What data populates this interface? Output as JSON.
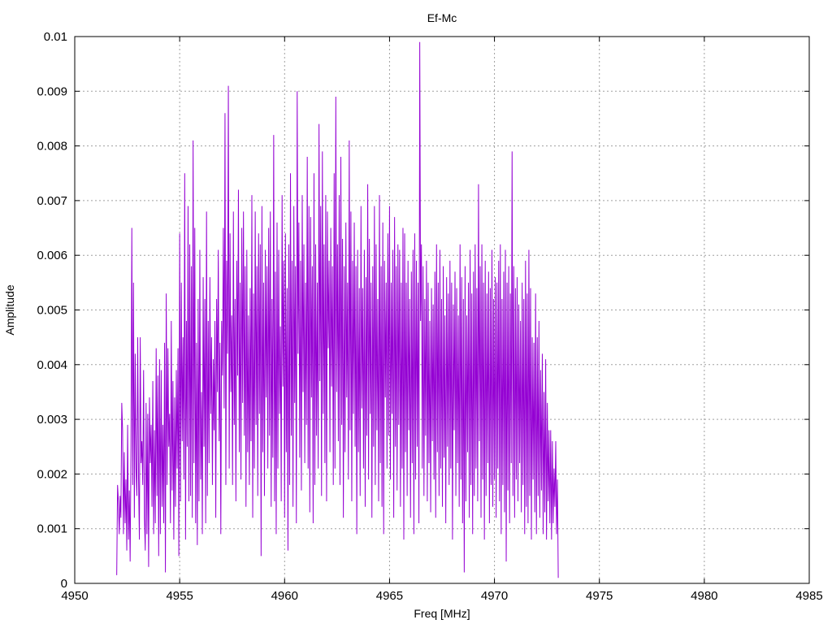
{
  "chart_data": {
    "type": "line",
    "title": "Ef-Mc",
    "xlabel": "Freq [MHz]",
    "ylabel": "Amplitude",
    "xlim": [
      4950,
      4985
    ],
    "ylim": [
      0,
      0.01
    ],
    "x_ticks": [
      "4950",
      "4955",
      "4960",
      "4965",
      "4970",
      "4975",
      "4980",
      "4985"
    ],
    "y_ticks": [
      "0",
      "0.001",
      "0.002",
      "0.003",
      "0.004",
      "0.005",
      "0.006",
      "0.007",
      "0.008",
      "0.009",
      "0.01"
    ],
    "grid": true,
    "legend": "none",
    "series": [
      {
        "color": "#9400d3",
        "x_start": 4952.0,
        "x_step": 0.04,
        "values": [
          0.00015,
          0.0018,
          0.0015,
          0.0009,
          0.0016,
          0.0012,
          0.0033,
          0.0028,
          0.0009,
          0.0024,
          0.0011,
          0.0019,
          0.0006,
          0.0029,
          0.0008,
          0.0017,
          0.0004,
          0.0025,
          0.0065,
          0.0018,
          0.0055,
          0.0012,
          0.0042,
          0.0021,
          0.0016,
          0.0045,
          0.0019,
          0.0008,
          0.0045,
          0.0022,
          0.0026,
          0.0018,
          0.0039,
          0.0012,
          0.0006,
          0.0033,
          0.0009,
          0.0031,
          0.0003,
          0.0034,
          0.0022,
          0.0029,
          0.0014,
          0.0037,
          0.0009,
          0.0028,
          0.0011,
          0.0043,
          0.0016,
          0.0038,
          0.0005,
          0.0041,
          0.0009,
          0.0039,
          0.0014,
          0.0029,
          0.0011,
          0.0044,
          0.0002,
          0.0053,
          0.0018,
          0.0043,
          0.0025,
          0.0031,
          0.0011,
          0.0048,
          0.0017,
          0.0037,
          0.0008,
          0.0034,
          0.0014,
          0.0039,
          0.0021,
          0.0043,
          0.0005,
          0.0064,
          0.0015,
          0.0055,
          0.0026,
          0.0045,
          0.0019,
          0.0075,
          0.0008,
          0.0048,
          0.0025,
          0.0069,
          0.0015,
          0.0062,
          0.0016,
          0.0058,
          0.0012,
          0.0081,
          0.0022,
          0.0065,
          0.0011,
          0.0044,
          0.0007,
          0.0052,
          0.0015,
          0.0061,
          0.0019,
          0.0035,
          0.0009,
          0.0056,
          0.0025,
          0.0052,
          0.0011,
          0.0068,
          0.0016,
          0.0048,
          0.0022,
          0.0056,
          0.0031,
          0.0045,
          0.0018,
          0.0041,
          0.0028,
          0.0048,
          0.0012,
          0.0052,
          0.0035,
          0.0061,
          0.0026,
          0.0044,
          0.0009,
          0.0048,
          0.0038,
          0.0065,
          0.0032,
          0.0086,
          0.0018,
          0.0059,
          0.0042,
          0.0091,
          0.0021,
          0.0064,
          0.0035,
          0.0049,
          0.0018,
          0.0068,
          0.0029,
          0.0052,
          0.0015,
          0.0059,
          0.0038,
          0.0072,
          0.0024,
          0.0055,
          0.0019,
          0.0065,
          0.0033,
          0.0068,
          0.0027,
          0.0058,
          0.0014,
          0.0061,
          0.0024,
          0.0049,
          0.0018,
          0.0054,
          0.0026,
          0.0071,
          0.0012,
          0.0053,
          0.0021,
          0.0068,
          0.0029,
          0.0058,
          0.0016,
          0.0064,
          0.0031,
          0.0062,
          0.0005,
          0.0069,
          0.0024,
          0.0055,
          0.0016,
          0.0061,
          0.0034,
          0.0058,
          0.0021,
          0.0065,
          0.0027,
          0.0068,
          0.0014,
          0.0052,
          0.0023,
          0.0082,
          0.0015,
          0.0057,
          0.0009,
          0.0066,
          0.0021,
          0.0061,
          0.0031,
          0.0047,
          0.0015,
          0.0071,
          0.0036,
          0.0059,
          0.0012,
          0.0064,
          0.0024,
          0.0054,
          0.0006,
          0.0062,
          0.0018,
          0.0075,
          0.0027,
          0.0059,
          0.0014,
          0.0069,
          0.0033,
          0.0058,
          0.0011,
          0.009,
          0.0042,
          0.0066,
          0.0023,
          0.0059,
          0.0017,
          0.0071,
          0.0035,
          0.0062,
          0.0022,
          0.0055,
          0.0029,
          0.0078,
          0.0021,
          0.0069,
          0.0013,
          0.0067,
          0.0034,
          0.0058,
          0.0011,
          0.0075,
          0.0018,
          0.0062,
          0.0027,
          0.0055,
          0.0021,
          0.0084,
          0.0037,
          0.0069,
          0.0016,
          0.0079,
          0.0031,
          0.0062,
          0.0022,
          0.0071,
          0.0015,
          0.0068,
          0.0043,
          0.0059,
          0.0024,
          0.0065,
          0.0036,
          0.0058,
          0.0018,
          0.0075,
          0.0021,
          0.0089,
          0.0035,
          0.0062,
          0.0026,
          0.0071,
          0.0018,
          0.0078,
          0.0029,
          0.0063,
          0.0012,
          0.0058,
          0.0024,
          0.0066,
          0.0034,
          0.0055,
          0.0019,
          0.0081,
          0.0028,
          0.0068,
          0.0015,
          0.0059,
          0.0031,
          0.0066,
          0.0025,
          0.0058,
          0.0009,
          0.0061,
          0.0024,
          0.0054,
          0.0016,
          0.0069,
          0.0032,
          0.0054,
          0.0021,
          0.0061,
          0.0014,
          0.0056,
          0.0027,
          0.0073,
          0.0019,
          0.0063,
          0.0031,
          0.0055,
          0.0012,
          0.0058,
          0.0025,
          0.0069,
          0.0018,
          0.0062,
          0.0028,
          0.0052,
          0.0015,
          0.0071,
          0.0022,
          0.0058,
          0.0014,
          0.0066,
          0.0009,
          0.0059,
          0.0034,
          0.0055,
          0.0021,
          0.0064,
          0.0027,
          0.0069,
          0.0019,
          0.0055,
          0.0031,
          0.0061,
          0.0012,
          0.0067,
          0.0025,
          0.0058,
          0.0017,
          0.0062,
          0.0029,
          0.0061,
          0.0014,
          0.0055,
          0.0021,
          0.0065,
          0.0008,
          0.0064,
          0.0024,
          0.0055,
          0.0016,
          0.0059,
          0.0028,
          0.0052,
          0.0012,
          0.0057,
          0.0022,
          0.0061,
          0.0009,
          0.0064,
          0.0019,
          0.0059,
          0.0025,
          0.0055,
          0.0011,
          0.0099,
          0.0048,
          0.0062,
          0.0021,
          0.0058,
          0.0016,
          0.0052,
          0.0027,
          0.0059,
          0.0015,
          0.0055,
          0.0022,
          0.0048,
          0.0013,
          0.0054,
          0.0026,
          0.0051,
          0.0019,
          0.0057,
          0.0012,
          0.0062,
          0.0024,
          0.0055,
          0.0016,
          0.0061,
          0.0021,
          0.0052,
          0.0014,
          0.0058,
          0.0023,
          0.0049,
          0.0011,
          0.0056,
          0.0025,
          0.0053,
          0.0018,
          0.0059,
          0.0021,
          0.0055,
          0.0008,
          0.0051,
          0.0028,
          0.0057,
          0.0016,
          0.0054,
          0.0022,
          0.0049,
          0.0014,
          0.0062,
          0.0019,
          0.0056,
          0.0011,
          0.0052,
          0.0002,
          0.0058,
          0.0015,
          0.0049,
          0.0024,
          0.0055,
          0.0012,
          0.0061,
          0.0018,
          0.0053,
          0.0009,
          0.0057,
          0.0016,
          0.0062,
          0.0021,
          0.0054,
          0.0015,
          0.0073,
          0.0026,
          0.0058,
          0.0012,
          0.0062,
          0.0019,
          0.0055,
          0.0008,
          0.0059,
          0.0016,
          0.0053,
          0.0022,
          0.0057,
          0.0011,
          0.0054,
          0.0018,
          0.0061,
          0.0014,
          0.0052,
          0.0019,
          0.0056,
          0.0012,
          0.0055,
          0.0021,
          0.0059,
          0.0015,
          0.0062,
          0.0009,
          0.0052,
          0.0018,
          0.0057,
          0.0013,
          0.0061,
          0.0004,
          0.0055,
          0.0017,
          0.0058,
          0.0011,
          0.0053,
          0.0022,
          0.0079,
          0.0016,
          0.0058,
          0.0012,
          0.0054,
          0.0019,
          0.0056,
          0.0015,
          0.0051,
          0.0022,
          0.0048,
          0.0013,
          0.0055,
          0.0018,
          0.0052,
          0.0009,
          0.0059,
          0.0014,
          0.0053,
          0.0011,
          0.0061,
          0.0016,
          0.0054,
          0.0008,
          0.0045,
          0.0019,
          0.0044,
          0.0013,
          0.0053,
          0.0009,
          0.0045,
          0.0016,
          0.0048,
          0.0012,
          0.0039,
          0.0017,
          0.0042,
          0.0009,
          0.0035,
          0.0013,
          0.0041,
          0.0008,
          0.0033,
          0.0015,
          0.0028,
          0.0011,
          0.0028,
          0.0008,
          0.0026,
          0.0011,
          0.0021,
          0.0014,
          0.0026,
          0.0009,
          0.0019,
          0.0001
        ]
      }
    ]
  }
}
